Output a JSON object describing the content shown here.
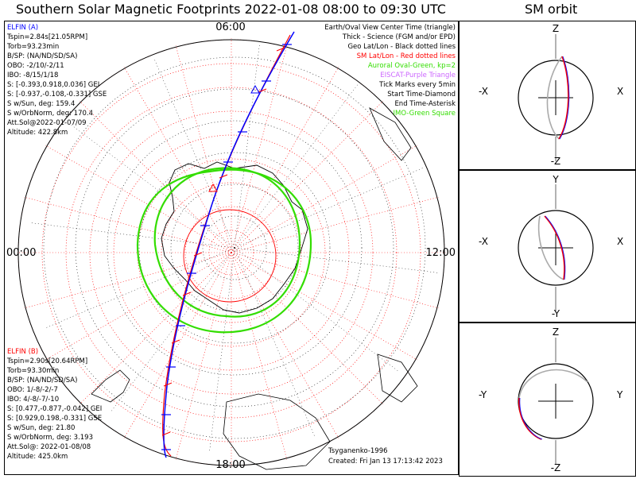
{
  "title": "Southern Solar Magnetic Footprints 2022-01-08 08:00 to 09:30 UTC",
  "orbit_title": "SM orbit",
  "colors": {
    "elfin_a": "#0000ff",
    "elfin_b": "#ff0000",
    "science": "#ff7f50",
    "aurora": "#33dd00",
    "eiscat": "#cc66ff",
    "geo_grid": "#000000",
    "sm_grid": "#ff0000",
    "coast": "#000000"
  },
  "elfin_a": {
    "header": "ELFIN (A)",
    "lines": [
      "Tspin=2.84s[21.05RPM]",
      "Torb=93.23min",
      "B/SP: (NA/ND/SD/SA)",
      "OBO: -2/10/-2/11",
      "IBO: -8/15/1/18",
      "S: [-0.393,0.918,0.036] GEI",
      "S: [-0.937,-0.108,-0.331] GSE",
      "S w/Sun, deg: 159.4",
      "S w/OrbNorm, deg: 170.4",
      "Att.Sol@2022-01-07/09",
      "Altitude: 422.8km"
    ]
  },
  "elfin_b": {
    "header": "ELFIN (B)",
    "lines": [
      "Tspin=2.90s[20.64RPM]",
      "Torb=93.30min",
      "B/SP: (NA/ND/SD/SA)",
      "OBO: 1/-8/-2/-7",
      "IBO: 4/-8/-7/-10",
      "S: [0.477,-0.877,-0.042] GEI",
      "S: [0.929,0.198,-0.331] GSE",
      "S w/Sun, deg: 21.80",
      "S w/OrbNorm, deg: 3.193",
      "Att.Sol@: 2022-01-08/08",
      "Altitude: 425.0km"
    ]
  },
  "legend": [
    {
      "text": "Earth/Oval View Center Time (triangle)",
      "color": "#000000"
    },
    {
      "text": "Thick - Science (FGM and/or EPD)",
      "color": "#000000"
    },
    {
      "text": "Geo Lat/Lon - Black dotted lines",
      "color": "#000000"
    },
    {
      "text": "SM Lat/Lon - Red dotted lines",
      "color": "#ff0000"
    },
    {
      "text": "Auroral Oval-Green, kp=2",
      "color": "#33dd00"
    },
    {
      "text": "EISCAT-Purple Triangle",
      "color": "#cc66ff"
    },
    {
      "text": "Tick Marks every 5min",
      "color": "#000000"
    },
    {
      "text": "Start Time-Diamond",
      "color": "#000000"
    },
    {
      "text": "End Time-Asterisk",
      "color": "#000000"
    },
    {
      "text": "IMO-Green Square",
      "color": "#33dd00"
    }
  ],
  "clock_labels": {
    "top": "06:00",
    "left": "00:00",
    "right": "12:00",
    "bottom": "18:00"
  },
  "credits": {
    "author": "Tsyganenko-1996",
    "created": "Created: Fri Jan 13 17:13:42 2023"
  },
  "orbit_panels": [
    {
      "top": "Z",
      "bottom": "-Z",
      "left": "-X",
      "right": "X"
    },
    {
      "top": "Y",
      "bottom": "-Y",
      "left": "-X",
      "right": "X"
    },
    {
      "top": "Z",
      "bottom": "-Z",
      "left": "-Y",
      "right": "Y"
    }
  ],
  "chart_data": {
    "type": "polar-footprint",
    "title": "Southern Solar Magnetic Footprints 2022-01-08 08:00 to 09:30 UTC",
    "projection": "south polar, SM magnetic local time",
    "clock_labels": [
      "06:00",
      "12:00",
      "18:00",
      "00:00"
    ],
    "grid": true,
    "series": [
      {
        "name": "ELFIN (A)",
        "color": "#0000ff"
      },
      {
        "name": "ELFIN (B)",
        "color": "#ff0000"
      },
      {
        "name": "Auroral Oval-Green, kp=2",
        "color": "#33dd00"
      }
    ]
  }
}
